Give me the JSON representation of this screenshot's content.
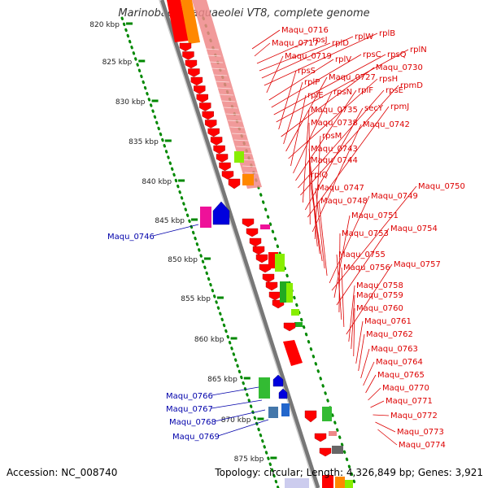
{
  "title": "Marinobacter aquaeolei VT8, complete genome",
  "footer": {
    "accession": "Accession: NC_008740",
    "summary": "Topology: circular; Length: 4,326,849 bp; Genes: 3,921"
  },
  "colors": {
    "reverse_gene": "#ff0000",
    "forward_gene": "#0000dd",
    "backbone": "#999999",
    "tick": "#008800",
    "red_label": "#dd0000",
    "blue_label": "#0000aa",
    "rna_band": "#ee8888",
    "accent_green": "#88ee00",
    "accent_orange": "#ff8800",
    "accent_magenta": "#ee1199"
  },
  "scale_ticks": [
    "820 kbp",
    "825 kbp",
    "830 kbp",
    "835 kbp",
    "840 kbp",
    "845 kbp",
    "850 kbp",
    "855 kbp",
    "860 kbp",
    "865 kbp",
    "870 kbp",
    "875 kbp"
  ],
  "red_labels": [
    "Maqu_0716",
    "Maqu_0717",
    "rpsJ",
    "rplD",
    "rplW",
    "rplB",
    "Maqu_0719",
    "rplV",
    "rpsC",
    "rpsQ",
    "rplN",
    "rpsS",
    "Maqu_0730",
    "rplP",
    "Maqu_0727",
    "rpsH",
    "rplE",
    "rpsN",
    "rplF",
    "rpsE",
    "rpmD",
    "Maqu_0735",
    "secY",
    "rpmJ",
    "Maqu_0738",
    "Maqu_0742",
    "rpsM",
    "Maqu_0743",
    "Maqu_0744",
    "rplQ",
    "Maqu_0747",
    "Maqu_0748",
    "Maqu_0749",
    "Maqu_0750",
    "Maqu_0751",
    "Maqu_0754",
    "Maqu_0753",
    "Maqu_0755",
    "Maqu_0756",
    "Maqu_0757",
    "Maqu_0758",
    "Maqu_0759",
    "Maqu_0760",
    "Maqu_0761",
    "Maqu_0762",
    "Maqu_0763",
    "Maqu_0764",
    "Maqu_0765",
    "Maqu_0770",
    "Maqu_0771",
    "Maqu_0772",
    "Maqu_0773",
    "Maqu_0774"
  ],
  "blue_labels": [
    "Maqu_0746",
    "Maqu_0766",
    "Maqu_0767",
    "Maqu_0768",
    "Maqu_0769"
  ]
}
